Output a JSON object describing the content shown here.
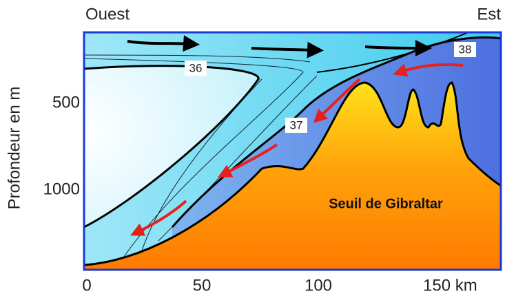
{
  "header": {
    "west": "Ouest",
    "east": "Est"
  },
  "y_axis": {
    "title": "Profondeur en m",
    "ticks": [
      "500",
      "1000"
    ]
  },
  "x_axis": {
    "ticks": [
      "0",
      "50",
      "100",
      "150 km"
    ]
  },
  "isohalines": [
    "36",
    "37",
    "38"
  ],
  "feature": "Seuil de Gibraltar"
}
